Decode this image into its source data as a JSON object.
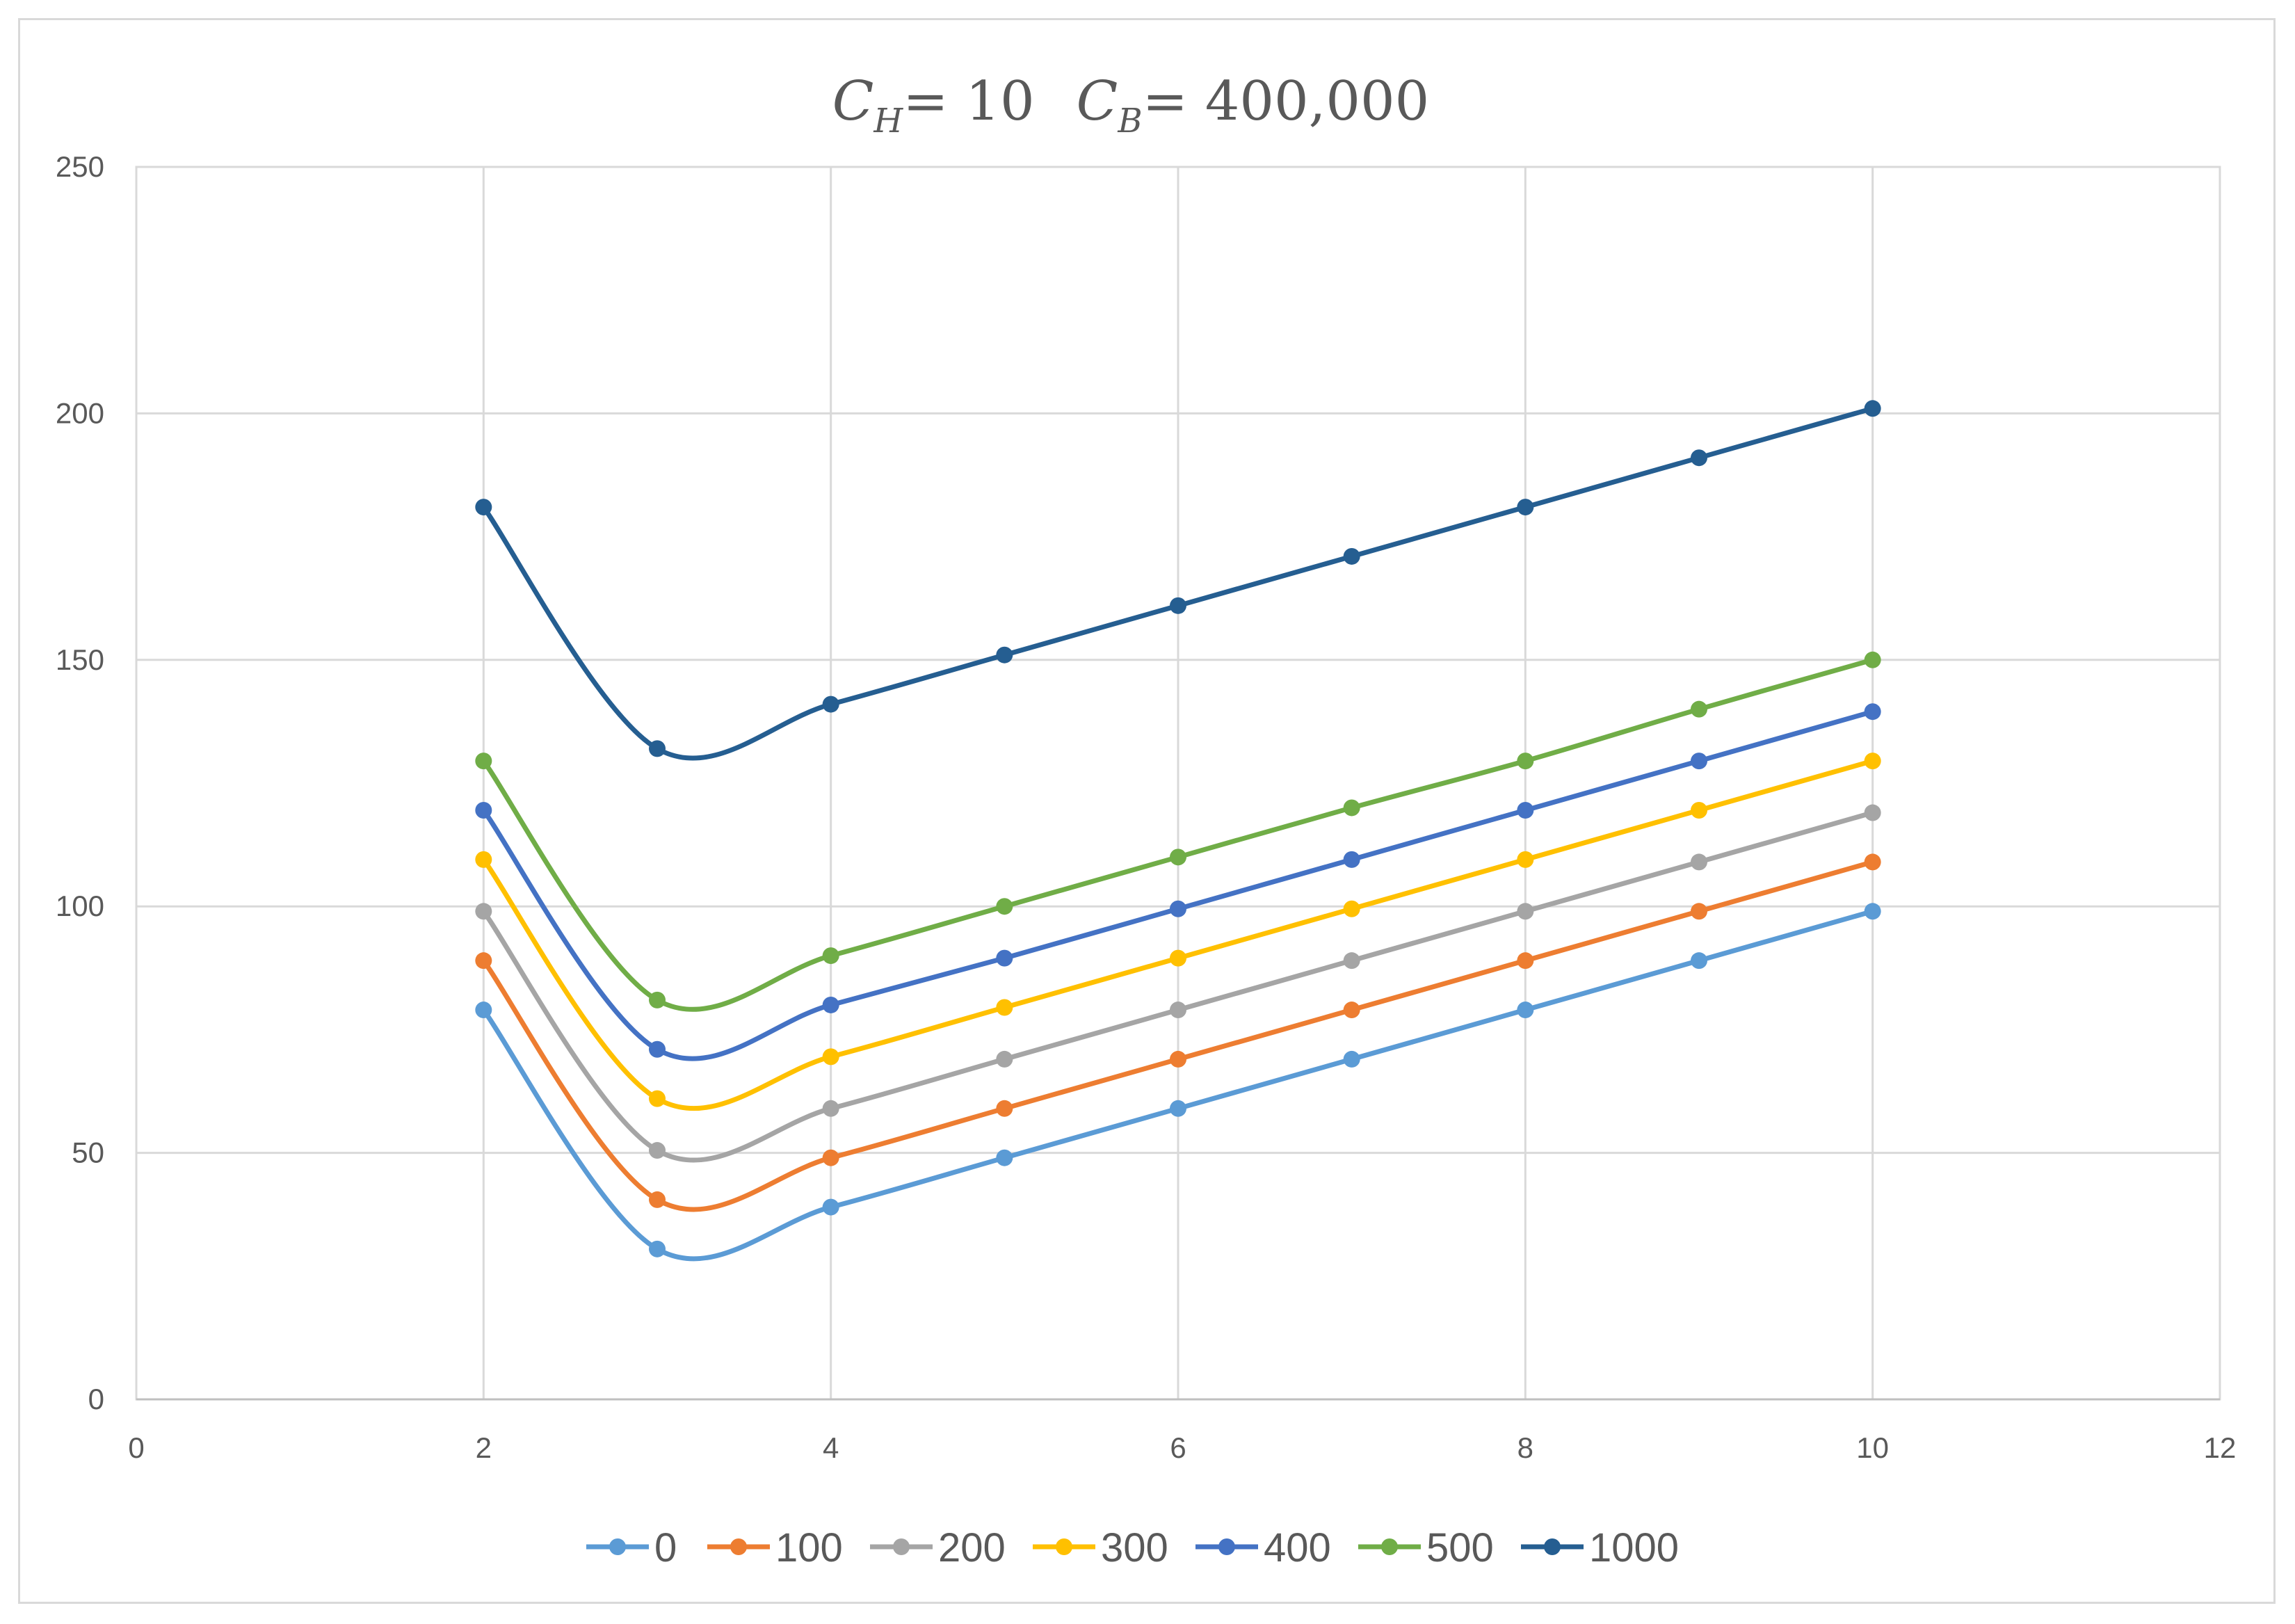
{
  "chart_data": {
    "type": "line",
    "smooth": true,
    "title": {
      "part1_symbol": "C",
      "part1_sub": "H",
      "part1_rest": "= 10",
      "part2_symbol": "C",
      "part2_sub": "B",
      "part2_rest": "= 400,000"
    },
    "xlabel": "",
    "ylabel": "",
    "xlim": [
      0,
      12
    ],
    "ylim": [
      0,
      250
    ],
    "xticks": [
      0,
      2,
      4,
      6,
      8,
      10,
      12
    ],
    "yticks": [
      0,
      50,
      100,
      150,
      200,
      250
    ],
    "grid": true,
    "legend_position": "bottom",
    "x": [
      2,
      3,
      4,
      5,
      6,
      7,
      8,
      9,
      10
    ],
    "series": [
      {
        "name": "0",
        "color": "#5b9bd5",
        "values": [
          79,
          30.5,
          39,
          49,
          59,
          69,
          79,
          89,
          99
        ]
      },
      {
        "name": "100",
        "color": "#ed7d31",
        "values": [
          89,
          40.5,
          49,
          59,
          69,
          79,
          89,
          99,
          109
        ]
      },
      {
        "name": "200",
        "color": "#a5a5a5",
        "values": [
          99,
          50.5,
          59,
          69,
          79,
          89,
          99,
          109,
          119
        ]
      },
      {
        "name": "300",
        "color": "#ffc000",
        "values": [
          109.5,
          61,
          69.5,
          79.5,
          89.5,
          99.5,
          109.5,
          119.5,
          129.5
        ]
      },
      {
        "name": "400",
        "color": "#4472c4",
        "values": [
          119.5,
          71,
          80,
          89.5,
          99.5,
          109.5,
          119.5,
          129.5,
          139.5
        ]
      },
      {
        "name": "500",
        "color": "#70ad47",
        "values": [
          129.5,
          81,
          90,
          100,
          110,
          120,
          129.5,
          140,
          150
        ]
      },
      {
        "name": "1000",
        "color": "#255e91",
        "values": [
          181,
          132,
          141,
          151,
          161,
          171,
          181,
          191,
          201
        ]
      }
    ]
  }
}
